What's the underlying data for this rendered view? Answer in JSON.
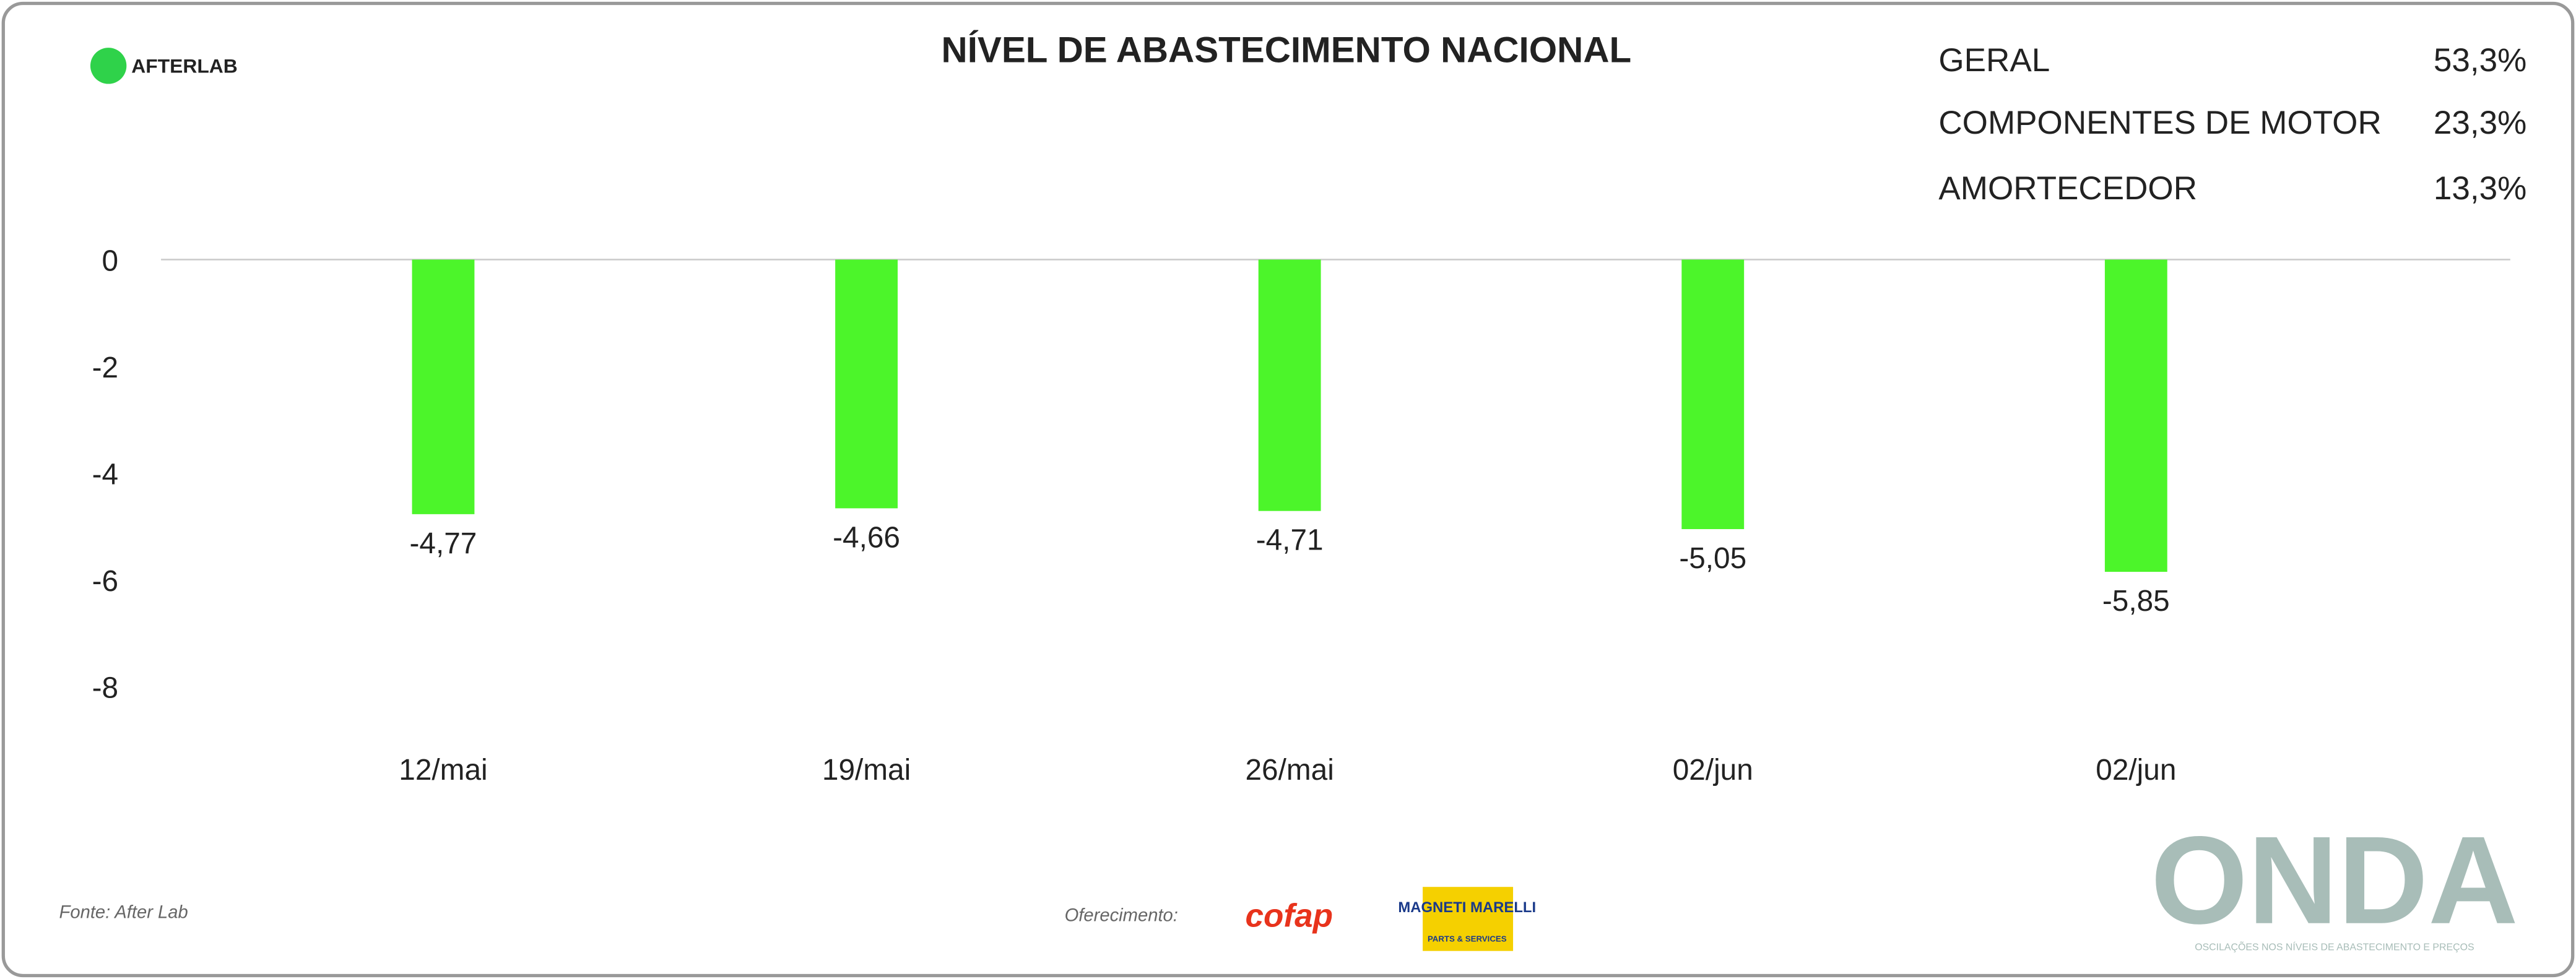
{
  "chart_data": {
    "type": "bar",
    "title": "NÍVEL DE ABASTECIMENTO NACIONAL",
    "categories": [
      "12/mai",
      "19/mai",
      "26/mai",
      "02/jun",
      "02/jun"
    ],
    "values": [
      -4.77,
      -4.66,
      -4.71,
      -5.05,
      -5.85
    ],
    "value_labels": [
      "-4,77",
      "-4,66",
      "-4,71",
      "-5,05",
      "-5,85"
    ],
    "color": "#4cf52a",
    "ylim": [
      -8,
      0
    ],
    "yticks": [
      0,
      -2,
      -4,
      -6,
      -8
    ],
    "grid": false
  },
  "summary": [
    {
      "label": "GERAL",
      "value": "53,3%"
    },
    {
      "label": "COMPONENTES DE MOTOR",
      "value": "23,3%"
    },
    {
      "label": "AMORTECEDOR",
      "value": "13,3%"
    }
  ],
  "header": {
    "logo": "AFTERLAB"
  },
  "footer": {
    "source": "Fonte: After Lab",
    "sponsor_label": "Oferecimento:",
    "sponsor_1": "cofap",
    "sponsor_2": "MAGNETI MARELLI",
    "sponsor_2_sub": "PARTS & SERVICES",
    "brand": "ONDA",
    "brand_tagline": "OSCILAÇÕES NOS NÍVEIS DE ABASTECIMENTO E PREÇOS"
  }
}
